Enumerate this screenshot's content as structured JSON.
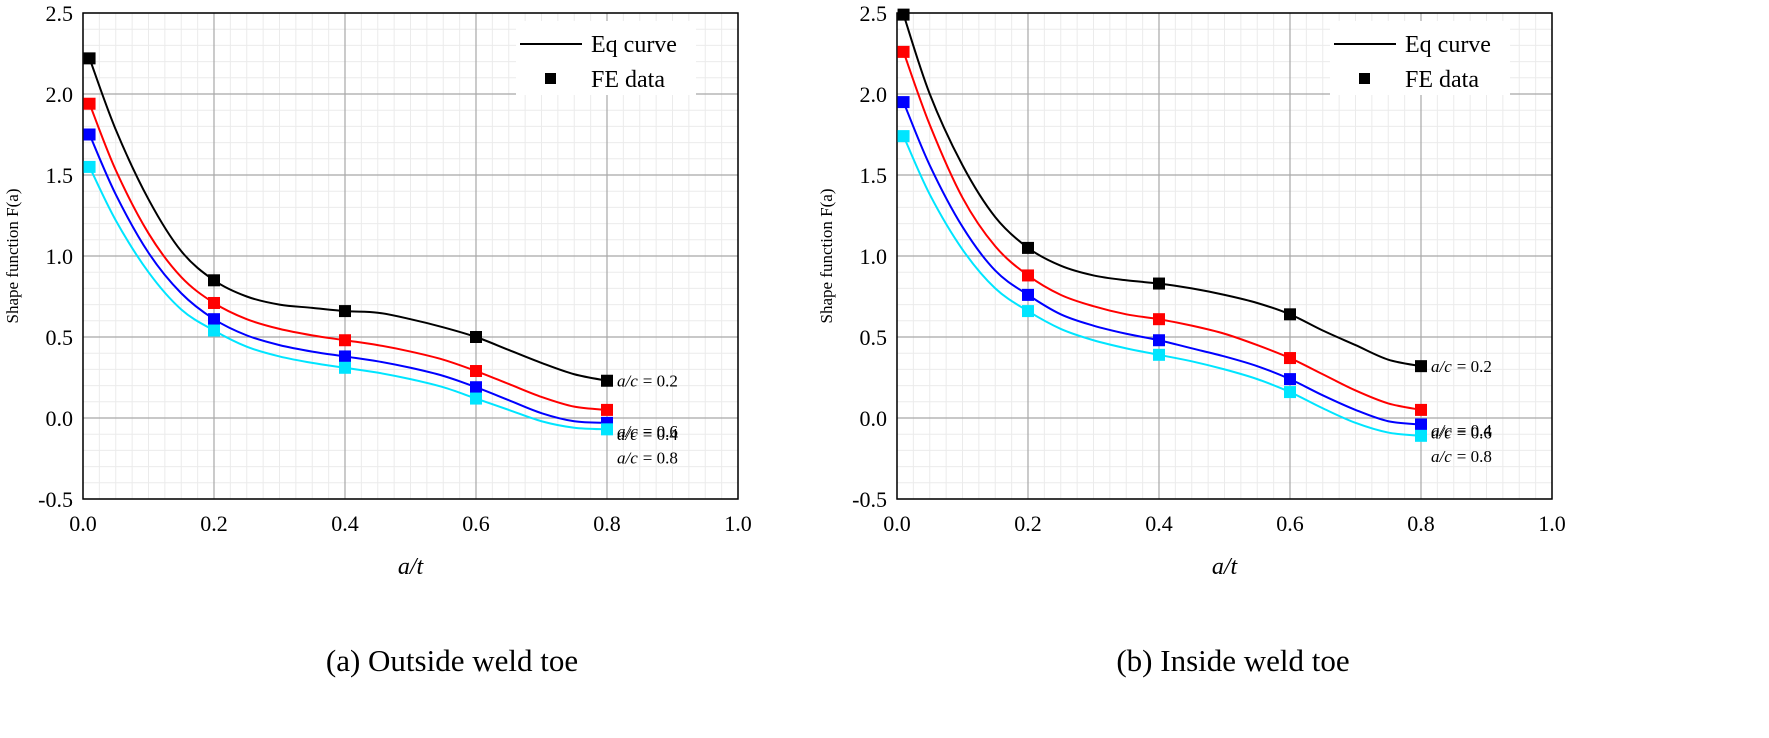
{
  "chart_data": [
    {
      "type": "line",
      "caption": "(a) Outside weld toe",
      "xlabel": "a/t",
      "ylabel": "Shape function F(a)",
      "xlim": [
        0.0,
        1.0
      ],
      "ylim": [
        -0.5,
        2.5
      ],
      "xticks": [
        "0.0",
        "0.2",
        "0.4",
        "0.6",
        "0.8",
        "1.0"
      ],
      "yticks": [
        "-0.5",
        "0.0",
        "0.5",
        "1.0",
        "1.5",
        "2.0",
        "2.5"
      ],
      "grid": true,
      "legend": {
        "position": "top-right",
        "curve_label": "Eq curve",
        "data_label": "FE data"
      },
      "series": [
        {
          "name": "a/c = 0.2",
          "label_prefix": "a/c",
          "label_value": "= 0.2",
          "color": "#000000",
          "fe_x": [
            0.01,
            0.2,
            0.4,
            0.6,
            0.8
          ],
          "fe_y": [
            2.22,
            0.85,
            0.66,
            0.5,
            0.23
          ],
          "curve_x": [
            0.01,
            0.05,
            0.1,
            0.15,
            0.2,
            0.25,
            0.3,
            0.35,
            0.4,
            0.45,
            0.5,
            0.55,
            0.6,
            0.65,
            0.7,
            0.75,
            0.8
          ],
          "curve_y": [
            2.22,
            1.78,
            1.35,
            1.03,
            0.85,
            0.75,
            0.7,
            0.68,
            0.66,
            0.65,
            0.61,
            0.56,
            0.5,
            0.42,
            0.34,
            0.27,
            0.23
          ]
        },
        {
          "name": "a/c = 0.4",
          "label_prefix": "a/c",
          "label_value": "= 0.4",
          "color": "#ff0000",
          "fe_x": [
            0.01,
            0.2,
            0.4,
            0.6,
            0.8
          ],
          "fe_y": [
            1.94,
            0.71,
            0.48,
            0.29,
            0.05
          ],
          "curve_x": [
            0.01,
            0.05,
            0.1,
            0.15,
            0.2,
            0.25,
            0.3,
            0.35,
            0.4,
            0.45,
            0.5,
            0.55,
            0.6,
            0.65,
            0.7,
            0.75,
            0.8
          ],
          "curve_y": [
            1.94,
            1.53,
            1.14,
            0.87,
            0.71,
            0.61,
            0.55,
            0.51,
            0.48,
            0.45,
            0.41,
            0.36,
            0.29,
            0.21,
            0.13,
            0.07,
            0.05
          ]
        },
        {
          "name": "a/c = 0.6",
          "label_prefix": "a/c",
          "label_value": "= 0.6",
          "color": "#0000ff",
          "fe_x": [
            0.01,
            0.2,
            0.4,
            0.6,
            0.8
          ],
          "fe_y": [
            1.75,
            0.61,
            0.38,
            0.19,
            -0.03
          ],
          "curve_x": [
            0.01,
            0.05,
            0.1,
            0.15,
            0.2,
            0.25,
            0.3,
            0.35,
            0.4,
            0.45,
            0.5,
            0.55,
            0.6,
            0.65,
            0.7,
            0.75,
            0.8
          ],
          "curve_y": [
            1.75,
            1.38,
            1.02,
            0.77,
            0.61,
            0.51,
            0.45,
            0.41,
            0.38,
            0.35,
            0.31,
            0.26,
            0.19,
            0.11,
            0.03,
            -0.02,
            -0.03
          ]
        },
        {
          "name": "a/c = 0.8",
          "label_prefix": "a/c",
          "label_value": "= 0.8",
          "color": "#00e5ff",
          "fe_x": [
            0.01,
            0.2,
            0.4,
            0.6,
            0.8
          ],
          "fe_y": [
            1.55,
            0.54,
            0.31,
            0.12,
            -0.07
          ],
          "curve_x": [
            0.01,
            0.05,
            0.1,
            0.15,
            0.2,
            0.25,
            0.3,
            0.35,
            0.4,
            0.45,
            0.5,
            0.55,
            0.6,
            0.65,
            0.7,
            0.75,
            0.8
          ],
          "curve_y": [
            1.55,
            1.22,
            0.9,
            0.67,
            0.54,
            0.44,
            0.38,
            0.34,
            0.31,
            0.28,
            0.24,
            0.19,
            0.12,
            0.05,
            -0.02,
            -0.06,
            -0.07
          ]
        }
      ]
    },
    {
      "type": "line",
      "caption": "(b) Inside weld toe",
      "xlabel": "a/t",
      "ylabel": "Shape function F(a)",
      "xlim": [
        0.0,
        1.0
      ],
      "ylim": [
        -0.5,
        2.5
      ],
      "xticks": [
        "0.0",
        "0.2",
        "0.4",
        "0.6",
        "0.8",
        "1.0"
      ],
      "yticks": [
        "-0.5",
        "0.0",
        "0.5",
        "1.0",
        "1.5",
        "2.0",
        "2.5"
      ],
      "grid": true,
      "legend": {
        "position": "top-right",
        "curve_label": "Eq curve",
        "data_label": "FE data"
      },
      "series": [
        {
          "name": "a/c = 0.2",
          "label_prefix": "a/c",
          "label_value": "= 0.2",
          "color": "#000000",
          "fe_x": [
            0.01,
            0.2,
            0.4,
            0.6,
            0.8
          ],
          "fe_y": [
            2.49,
            1.05,
            0.83,
            0.64,
            0.32
          ],
          "curve_x": [
            0.01,
            0.05,
            0.1,
            0.15,
            0.2,
            0.25,
            0.3,
            0.35,
            0.4,
            0.45,
            0.5,
            0.55,
            0.6,
            0.65,
            0.7,
            0.75,
            0.8
          ],
          "curve_y": [
            2.49,
            2.0,
            1.56,
            1.24,
            1.05,
            0.94,
            0.88,
            0.85,
            0.83,
            0.8,
            0.76,
            0.71,
            0.64,
            0.54,
            0.45,
            0.36,
            0.32
          ]
        },
        {
          "name": "a/c = 0.4",
          "label_prefix": "a/c",
          "label_value": "= 0.4",
          "color": "#ff0000",
          "fe_x": [
            0.01,
            0.2,
            0.4,
            0.6,
            0.8
          ],
          "fe_y": [
            2.26,
            0.88,
            0.61,
            0.37,
            0.05
          ],
          "curve_x": [
            0.01,
            0.05,
            0.1,
            0.15,
            0.2,
            0.25,
            0.3,
            0.35,
            0.4,
            0.45,
            0.5,
            0.55,
            0.6,
            0.65,
            0.7,
            0.75,
            0.8
          ],
          "curve_y": [
            2.26,
            1.81,
            1.36,
            1.06,
            0.88,
            0.76,
            0.69,
            0.64,
            0.61,
            0.57,
            0.52,
            0.45,
            0.37,
            0.27,
            0.17,
            0.09,
            0.05
          ]
        },
        {
          "name": "a/c = 0.6",
          "label_prefix": "a/c",
          "label_value": "= 0.6",
          "color": "#0000ff",
          "fe_x": [
            0.01,
            0.2,
            0.4,
            0.6,
            0.8
          ],
          "fe_y": [
            1.95,
            0.76,
            0.48,
            0.24,
            -0.04
          ],
          "curve_x": [
            0.01,
            0.05,
            0.1,
            0.15,
            0.2,
            0.25,
            0.3,
            0.35,
            0.4,
            0.45,
            0.5,
            0.55,
            0.6,
            0.65,
            0.7,
            0.75,
            0.8
          ],
          "curve_y": [
            1.95,
            1.56,
            1.18,
            0.91,
            0.76,
            0.64,
            0.57,
            0.52,
            0.48,
            0.43,
            0.38,
            0.32,
            0.24,
            0.14,
            0.05,
            -0.02,
            -0.04
          ]
        },
        {
          "name": "a/c = 0.8",
          "label_prefix": "a/c",
          "label_value": "= 0.8",
          "color": "#00e5ff",
          "fe_x": [
            0.01,
            0.2,
            0.4,
            0.6,
            0.8
          ],
          "fe_y": [
            1.74,
            0.66,
            0.39,
            0.16,
            -0.11
          ],
          "curve_x": [
            0.01,
            0.05,
            0.1,
            0.15,
            0.2,
            0.25,
            0.3,
            0.35,
            0.4,
            0.45,
            0.5,
            0.55,
            0.6,
            0.65,
            0.7,
            0.75,
            0.8
          ],
          "curve_y": [
            1.74,
            1.38,
            1.04,
            0.8,
            0.66,
            0.55,
            0.48,
            0.43,
            0.39,
            0.35,
            0.3,
            0.24,
            0.16,
            0.06,
            -0.03,
            -0.09,
            -0.11
          ]
        }
      ]
    }
  ]
}
